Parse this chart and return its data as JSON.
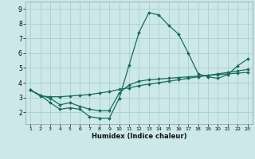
{
  "xlabel": "Humidex (Indice chaleur)",
  "background_color": "#cce8e8",
  "grid_color": "#aad0d0",
  "line_color": "#1a6b5a",
  "xlim": [
    0.5,
    23.5
  ],
  "ylim": [
    1.2,
    9.5
  ],
  "xticks": [
    1,
    2,
    3,
    4,
    5,
    6,
    7,
    8,
    9,
    10,
    11,
    12,
    13,
    14,
    15,
    16,
    17,
    18,
    19,
    20,
    21,
    22,
    23
  ],
  "yticks": [
    2,
    3,
    4,
    5,
    6,
    7,
    8,
    9
  ],
  "curve1_x": [
    1,
    2,
    3,
    4,
    5,
    6,
    7,
    8,
    9,
    10,
    11,
    12,
    13,
    14,
    15,
    16,
    17,
    18,
    19,
    20,
    21,
    22,
    23
  ],
  "curve1_y": [
    3.5,
    3.15,
    2.65,
    2.2,
    2.3,
    2.2,
    1.7,
    1.6,
    1.6,
    2.95,
    5.2,
    7.4,
    8.75,
    8.6,
    7.9,
    7.3,
    6.0,
    4.6,
    4.4,
    4.3,
    4.55,
    5.15,
    5.6
  ],
  "curve2_x": [
    1,
    2,
    3,
    4,
    5,
    6,
    7,
    8,
    9,
    10,
    11,
    12,
    13,
    14,
    15,
    16,
    17,
    18,
    19,
    20,
    21,
    22,
    23
  ],
  "curve2_y": [
    3.5,
    3.1,
    3.05,
    3.05,
    3.1,
    3.15,
    3.2,
    3.3,
    3.4,
    3.55,
    3.65,
    3.8,
    3.9,
    4.0,
    4.1,
    4.2,
    4.3,
    4.4,
    4.5,
    4.6,
    4.7,
    4.8,
    4.9
  ],
  "curve3_x": [
    1,
    2,
    3,
    4,
    5,
    6,
    7,
    8,
    9,
    10,
    11,
    12,
    13,
    14,
    15,
    16,
    17,
    18,
    19,
    20,
    21,
    22,
    23
  ],
  "curve3_y": [
    3.5,
    3.15,
    2.95,
    2.5,
    2.65,
    2.4,
    2.2,
    2.1,
    2.1,
    3.3,
    3.85,
    4.1,
    4.2,
    4.25,
    4.3,
    4.35,
    4.4,
    4.45,
    4.5,
    4.55,
    4.6,
    4.65,
    4.7
  ]
}
